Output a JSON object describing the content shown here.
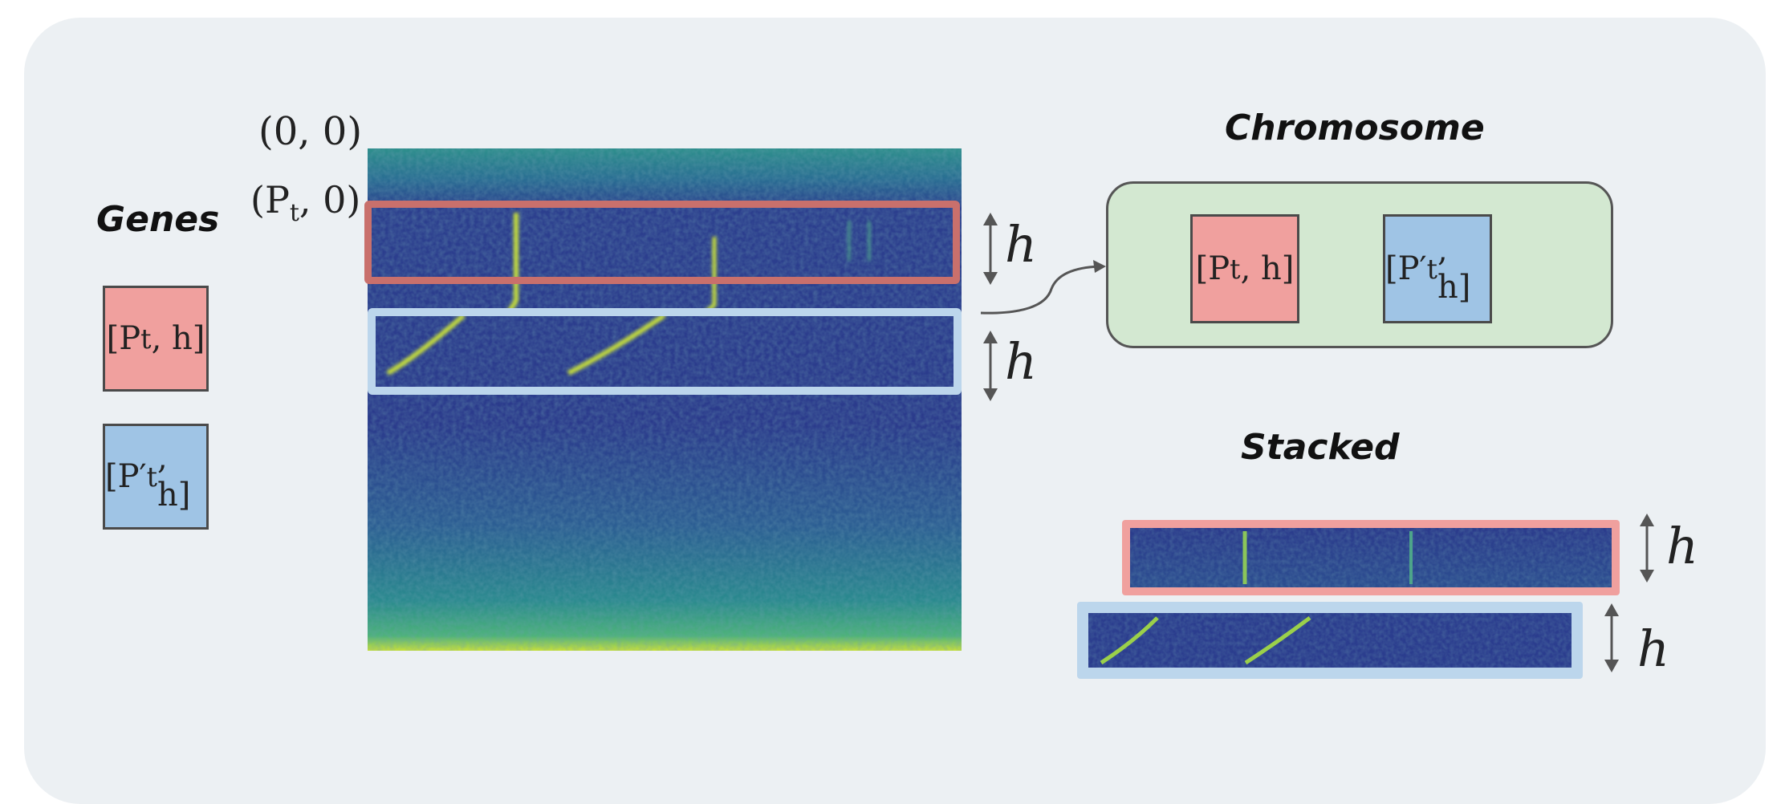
{
  "labels": {
    "origin": "(0, 0)",
    "offset_pre": "(P",
    "offset_sub": "t",
    "offset_post": ", 0)",
    "h": "h"
  },
  "genes": {
    "title": "Genes",
    "items": [
      {
        "pre": "[P",
        "sub": "t",
        "post": ", h]",
        "color": "#f0a09e"
      },
      {
        "pre": "[P′",
        "sub": "t",
        "post": ", h]",
        "color": "#9fc4e5"
      }
    ]
  },
  "chromosome": {
    "title": "Chromosome",
    "color": "#d3e8d1",
    "items": [
      {
        "pre": "[P",
        "sub": "t",
        "post": ", h]"
      },
      {
        "pre": "[P′",
        "sub": "t",
        "post": ", h]"
      }
    ]
  },
  "stacked": {
    "title": "Stacked"
  },
  "colors": {
    "red": "#f0a09e",
    "red_border": "#c9706c",
    "blue": "#9fc4e5",
    "blue_border": "#bcd6ec",
    "spectrogram_dark": "#2b3b8c",
    "spectrogram_bright": "#c8e03a"
  }
}
